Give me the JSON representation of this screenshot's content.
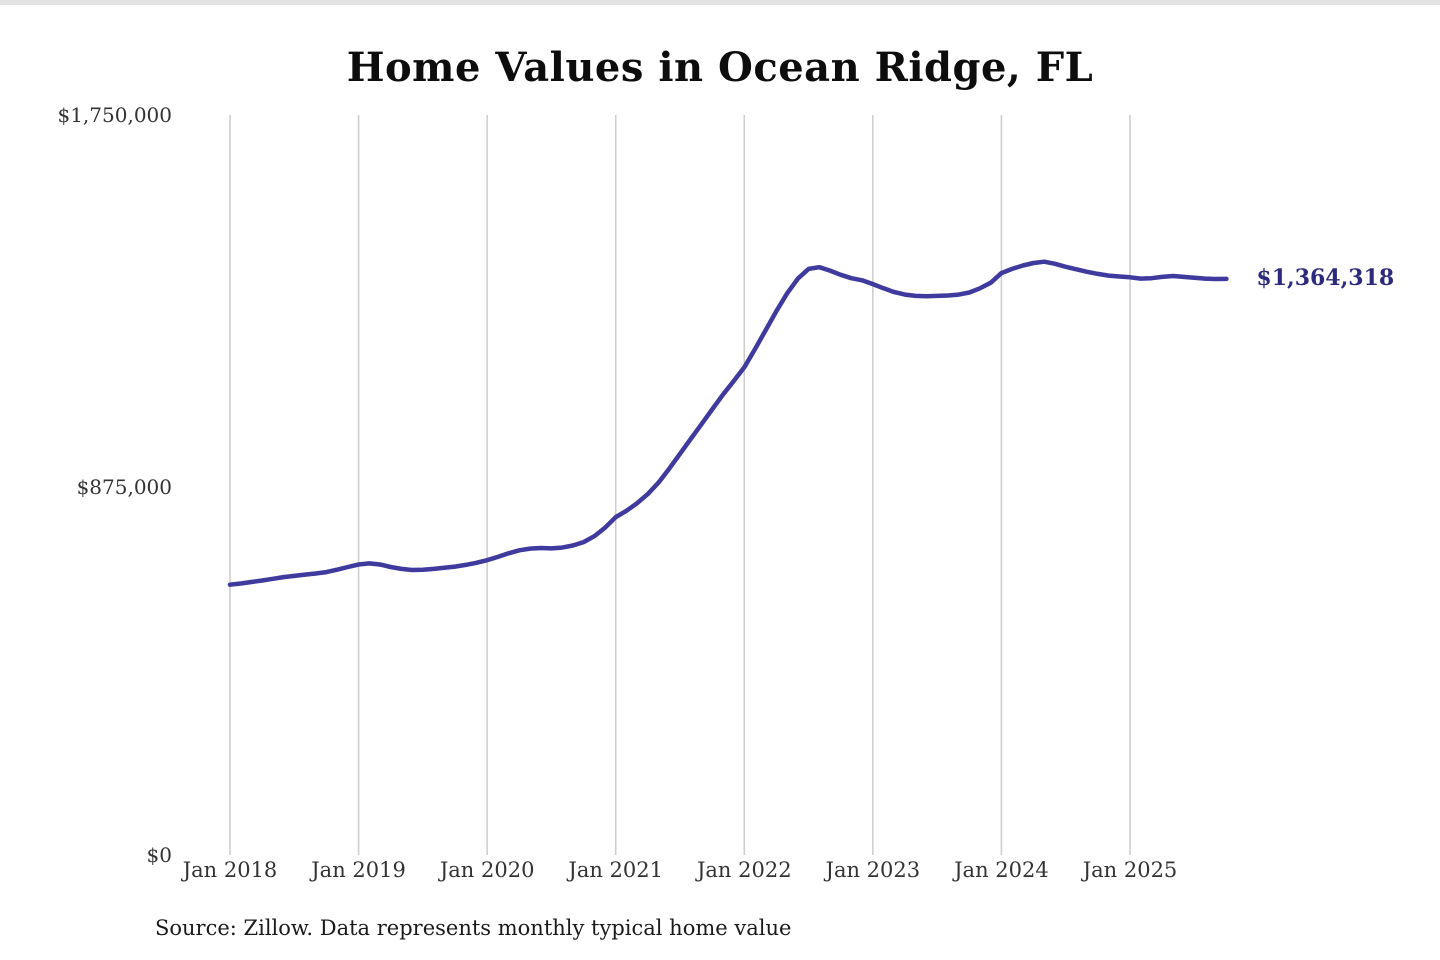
{
  "title": "Home Values in Ocean Ridge, FL",
  "end_label": "$1,364,318",
  "source": "Source: Zillow. Data represents monthly typical home value",
  "colors": {
    "line": "#3e3a9e",
    "end_label": "#2c2a7c",
    "grid": "#cccccc",
    "axis_text": "#333333"
  },
  "chart_data": {
    "type": "line",
    "title": "Home Values in Ocean Ridge, FL",
    "xlabel": "",
    "ylabel": "",
    "ylim": [
      0,
      1750000
    ],
    "grid": "vertical-only",
    "legend": "none",
    "y_tick_labels": [
      "$0",
      "$875,000",
      "$1,750,000"
    ],
    "y_tick_values": [
      0,
      875000,
      1750000
    ],
    "x_tick_labels": [
      "Jan 2018",
      "Jan 2019",
      "Jan 2020",
      "Jan 2021",
      "Jan 2022",
      "Jan 2023",
      "Jan 2024",
      "Jan 2025"
    ],
    "x_start_month": "2018-01",
    "x_end_month": "2025-10",
    "final_value": 1364318,
    "final_value_label": "$1,364,318",
    "series": [
      {
        "name": "Monthly typical home value",
        "values": [
          640000,
          643000,
          646500,
          650000,
          654000,
          658000,
          661000,
          664000,
          666500,
          670000,
          675500,
          682000,
          688000,
          690500,
          688000,
          682000,
          677500,
          675000,
          675500,
          677500,
          680000,
          683000,
          687000,
          692000,
          698000,
          706000,
          714500,
          721500,
          725500,
          727000,
          726000,
          728000,
          733000,
          741000,
          755000,
          775000,
          800000,
          815000,
          833000,
          855000,
          882000,
          915000,
          950000,
          985000,
          1020000,
          1055000,
          1090000,
          1122000,
          1155000,
          1198000,
          1243000,
          1288000,
          1330000,
          1365000,
          1388000,
          1392000,
          1384000,
          1374000,
          1366000,
          1361000,
          1352000,
          1342000,
          1333000,
          1327000,
          1324000,
          1323000,
          1324000,
          1325000,
          1327000,
          1332000,
          1342000,
          1355000,
          1378000,
          1388000,
          1396000,
          1402000,
          1405000,
          1400000,
          1393000,
          1387000,
          1381000,
          1376000,
          1372000,
          1370000,
          1368000,
          1365000,
          1366000,
          1369000,
          1371000,
          1369000,
          1367000,
          1365000,
          1364000,
          1364318
        ]
      }
    ]
  }
}
